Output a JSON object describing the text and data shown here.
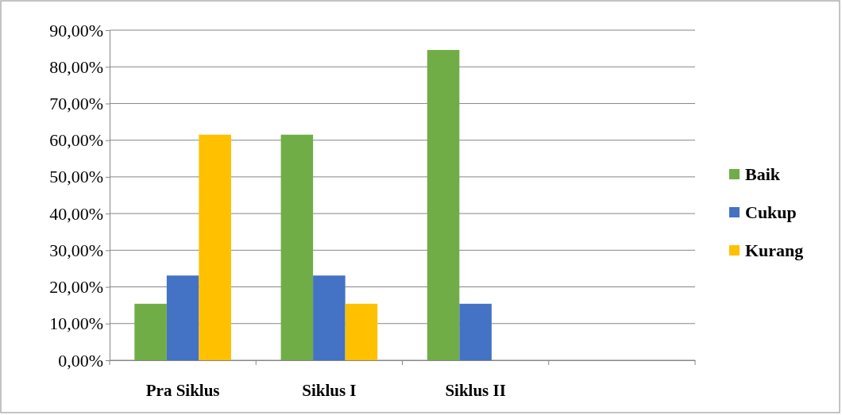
{
  "chart_data": {
    "type": "bar",
    "categories": [
      "Pra Siklus",
      "Siklus I",
      "Siklus II",
      null
    ],
    "series": [
      {
        "name": "Baik",
        "color": "#70ad47",
        "values": [
          15.4,
          61.5,
          84.6,
          null
        ]
      },
      {
        "name": "Cukup",
        "color": "#4472c4",
        "values": [
          23.1,
          23.1,
          15.4,
          null
        ]
      },
      {
        "name": "Kurang",
        "color": "#ffc000",
        "values": [
          61.5,
          15.4,
          0,
          null
        ]
      }
    ],
    "ylim": [
      0,
      90
    ],
    "yticks": [
      {
        "value": 0,
        "label": "0,00%"
      },
      {
        "value": 10,
        "label": "10,00%"
      },
      {
        "value": 20,
        "label": "20,00%"
      },
      {
        "value": 30,
        "label": "30,00%"
      },
      {
        "value": 40,
        "label": "40,00%"
      },
      {
        "value": 50,
        "label": "50,00%"
      },
      {
        "value": 60,
        "label": "60,00%"
      },
      {
        "value": 70,
        "label": "70,00%"
      },
      {
        "value": 80,
        "label": "80,00%"
      },
      {
        "value": 90,
        "label": "90,00%"
      }
    ],
    "grid": "y",
    "legend": "right"
  }
}
